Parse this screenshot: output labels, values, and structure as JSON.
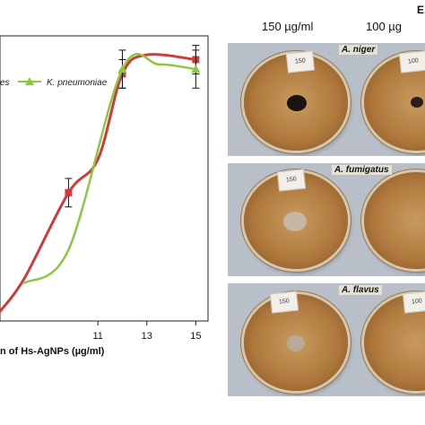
{
  "chart_data": {
    "type": "line",
    "xlabel": "n of Hs-AgNPs (µg/ml)",
    "x_ticks": [
      "11",
      "13",
      "15"
    ],
    "legend": {
      "partial_label": "es",
      "label": "K. pneumoniae"
    },
    "series": [
      {
        "name": "K. pneumoniae",
        "color": "#8dc63f",
        "points": [
          [
            8.0,
            92
          ],
          [
            9.8,
            85
          ],
          [
            12.0,
            47
          ],
          [
            13.5,
            46
          ],
          [
            15.0,
            47
          ]
        ],
        "errors": [
          0,
          0,
          4,
          0,
          4
        ]
      },
      {
        "name": "",
        "color": "#cf3a3a",
        "points": [
          [
            7.0,
            98
          ],
          [
            8.0,
            91
          ],
          [
            9.8,
            73
          ],
          [
            11.0,
            66
          ],
          [
            12.0,
            48
          ],
          [
            13.0,
            44
          ],
          [
            15.0,
            45
          ]
        ],
        "errors": [
          0,
          0,
          3,
          0,
          3,
          0,
          3
        ]
      }
    ],
    "xlim": [
      7.0,
      15.5
    ],
    "ylim": [
      40,
      100
    ]
  },
  "figure_b": {
    "panel_letter": "E",
    "concentrations": [
      "150 µg/ml",
      "100 µg"
    ],
    "rows": [
      {
        "organism": "A. niger",
        "stickers": [
          "150",
          "100"
        ]
      },
      {
        "organism": "A. fumigatus",
        "stickers": [
          "150",
          ""
        ]
      },
      {
        "organism": "A. flavus",
        "stickers": [
          "150",
          "100"
        ]
      }
    ]
  }
}
